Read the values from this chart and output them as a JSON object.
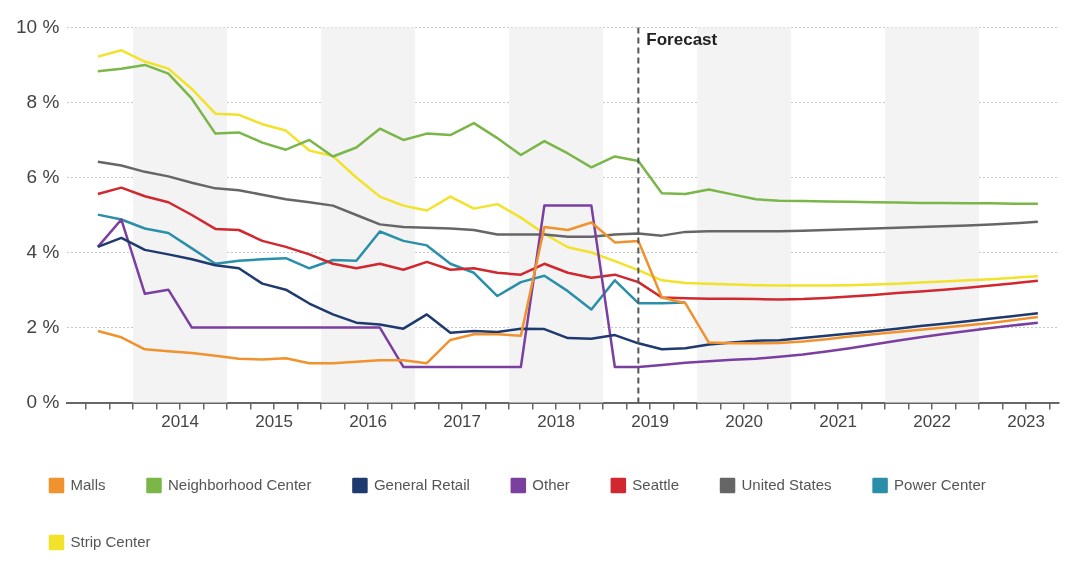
{
  "chart_data": {
    "type": "line",
    "x": [
      2013.625,
      2013.875,
      2014.125,
      2014.375,
      2014.625,
      2014.875,
      2015.125,
      2015.375,
      2015.625,
      2015.875,
      2016.125,
      2016.375,
      2016.625,
      2016.875,
      2017.125,
      2017.375,
      2017.625,
      2017.875,
      2018.125,
      2018.375,
      2018.625,
      2018.875,
      2019.125,
      2019.375,
      2019.625,
      2019.875,
      2020.125,
      2020.375,
      2020.625,
      2020.875,
      2021.125,
      2021.375,
      2021.625,
      2021.875,
      2022.125,
      2022.375,
      2022.625,
      2022.875,
      2023.125,
      2023.375,
      2023.625
    ],
    "series": [
      {
        "name": "Malls",
        "color": "#f0922e",
        "values": [
          1.91,
          1.74,
          1.42,
          1.37,
          1.32,
          1.25,
          1.17,
          1.15,
          1.18,
          1.05,
          1.05,
          1.09,
          1.13,
          1.13,
          1.05,
          1.67,
          1.82,
          1.82,
          1.78,
          4.68,
          4.6,
          4.8,
          4.27,
          4.31,
          2.8,
          2.65,
          1.6,
          1.58,
          1.58,
          1.59,
          1.63,
          1.69,
          1.76,
          1.82,
          1.88,
          1.94,
          2.0,
          2.06,
          2.12,
          2.2,
          2.28
        ]
      },
      {
        "name": "Neighborhood Center",
        "color": "#7ab648",
        "values": [
          8.83,
          8.9,
          9.0,
          8.77,
          8.1,
          7.17,
          7.2,
          6.93,
          6.74,
          7.0,
          6.56,
          6.8,
          7.3,
          7.0,
          7.17,
          7.13,
          7.45,
          7.05,
          6.6,
          6.97,
          6.64,
          6.27,
          6.56,
          6.44,
          5.58,
          5.56,
          5.68,
          5.55,
          5.42,
          5.38,
          5.37,
          5.36,
          5.35,
          5.34,
          5.33,
          5.32,
          5.32,
          5.31,
          5.31,
          5.3,
          5.3
        ]
      },
      {
        "name": "General Retail",
        "color": "#1f3a6e",
        "values": [
          4.15,
          4.39,
          4.07,
          3.95,
          3.82,
          3.66,
          3.58,
          3.17,
          3.01,
          2.64,
          2.35,
          2.13,
          2.08,
          1.97,
          2.35,
          1.86,
          1.91,
          1.88,
          1.97,
          1.96,
          1.72,
          1.7,
          1.8,
          1.58,
          1.42,
          1.45,
          1.55,
          1.6,
          1.65,
          1.66,
          1.72,
          1.78,
          1.84,
          1.9,
          1.97,
          2.04,
          2.1,
          2.17,
          2.24,
          2.31,
          2.38
        ]
      },
      {
        "name": "Other",
        "color": "#7b3fa0",
        "values": [
          4.15,
          4.88,
          2.9,
          3.01,
          2.0,
          2.0,
          2.0,
          2.0,
          2.0,
          2.0,
          2.0,
          2.0,
          2.0,
          0.95,
          0.95,
          0.95,
          0.95,
          0.95,
          0.95,
          5.25,
          5.25,
          5.25,
          0.95,
          0.95,
          1.0,
          1.06,
          1.1,
          1.14,
          1.17,
          1.22,
          1.28,
          1.36,
          1.45,
          1.55,
          1.65,
          1.74,
          1.83,
          1.91,
          1.99,
          2.06,
          2.13
        ]
      },
      {
        "name": "Seattle",
        "color": "#d0282e",
        "values": [
          5.56,
          5.73,
          5.5,
          5.34,
          5.0,
          4.63,
          4.6,
          4.31,
          4.15,
          3.95,
          3.7,
          3.58,
          3.7,
          3.54,
          3.75,
          3.54,
          3.58,
          3.46,
          3.41,
          3.7,
          3.46,
          3.33,
          3.41,
          3.21,
          2.8,
          2.78,
          2.77,
          2.77,
          2.76,
          2.75,
          2.76,
          2.79,
          2.83,
          2.87,
          2.92,
          2.96,
          3.01,
          3.06,
          3.12,
          3.18,
          3.25
        ]
      },
      {
        "name": "United States",
        "color": "#666666",
        "values": [
          6.42,
          6.32,
          6.15,
          6.03,
          5.86,
          5.71,
          5.66,
          5.54,
          5.42,
          5.34,
          5.25,
          5.0,
          4.75,
          4.68,
          4.66,
          4.64,
          4.6,
          4.48,
          4.48,
          4.48,
          4.42,
          4.42,
          4.48,
          4.51,
          4.45,
          4.55,
          4.57,
          4.57,
          4.57,
          4.57,
          4.58,
          4.6,
          4.62,
          4.64,
          4.66,
          4.68,
          4.7,
          4.72,
          4.75,
          4.78,
          4.82
        ]
      },
      {
        "name": "Power Center",
        "color": "#2a8fa8",
        "values": [
          5.01,
          4.88,
          4.64,
          4.52,
          4.11,
          3.7,
          3.78,
          3.82,
          3.85,
          3.58,
          3.8,
          3.78,
          4.56,
          4.31,
          4.19,
          3.7,
          3.46,
          2.84,
          3.21,
          3.38,
          2.97,
          2.48,
          3.26,
          2.65,
          2.65,
          2.67,
          null,
          null,
          null,
          null,
          null,
          null,
          null,
          null,
          null,
          null,
          null,
          null,
          null,
          null,
          null
        ]
      },
      {
        "name": "Strip Center",
        "color": "#f2e22a",
        "values": [
          9.22,
          9.39,
          9.09,
          8.9,
          8.36,
          7.7,
          7.67,
          7.42,
          7.25,
          6.72,
          6.57,
          6.0,
          5.49,
          5.25,
          5.12,
          5.49,
          5.17,
          5.29,
          4.93,
          4.5,
          4.14,
          4.0,
          3.77,
          3.53,
          3.26,
          3.19,
          3.17,
          3.15,
          3.13,
          3.12,
          3.12,
          3.12,
          3.13,
          3.15,
          3.17,
          3.2,
          3.23,
          3.26,
          3.29,
          3.33,
          3.37
        ]
      }
    ],
    "xlim": [
      2013.3,
      2023.85
    ],
    "xticks": [
      {
        "value": 2013.5,
        "label": null
      },
      {
        "value": 2013.75,
        "label": null
      },
      {
        "value": 2014,
        "label": null
      },
      {
        "value": 2014.25,
        "label": null
      },
      {
        "value": 2014.5,
        "label": "2014"
      },
      {
        "value": 2014.75,
        "label": null
      },
      {
        "value": 2015,
        "label": null
      },
      {
        "value": 2015.25,
        "label": null
      },
      {
        "value": 2015.5,
        "label": "2015"
      },
      {
        "value": 2015.75,
        "label": null
      },
      {
        "value": 2016,
        "label": null
      },
      {
        "value": 2016.25,
        "label": null
      },
      {
        "value": 2016.5,
        "label": "2016"
      },
      {
        "value": 2016.75,
        "label": null
      },
      {
        "value": 2017,
        "label": null
      },
      {
        "value": 2017.25,
        "label": null
      },
      {
        "value": 2017.5,
        "label": "2017"
      },
      {
        "value": 2017.75,
        "label": null
      },
      {
        "value": 2018,
        "label": null
      },
      {
        "value": 2018.25,
        "label": null
      },
      {
        "value": 2018.5,
        "label": "2018"
      },
      {
        "value": 2018.75,
        "label": null
      },
      {
        "value": 2019,
        "label": null
      },
      {
        "value": 2019.25,
        "label": null
      },
      {
        "value": 2019.5,
        "label": "2019"
      },
      {
        "value": 2019.75,
        "label": null
      },
      {
        "value": 2020,
        "label": null
      },
      {
        "value": 2020.25,
        "label": null
      },
      {
        "value": 2020.5,
        "label": "2020"
      },
      {
        "value": 2020.75,
        "label": null
      },
      {
        "value": 2021,
        "label": null
      },
      {
        "value": 2021.25,
        "label": null
      },
      {
        "value": 2021.5,
        "label": "2021"
      },
      {
        "value": 2021.75,
        "label": null
      },
      {
        "value": 2022,
        "label": null
      },
      {
        "value": 2022.25,
        "label": null
      },
      {
        "value": 2022.5,
        "label": "2022"
      },
      {
        "value": 2022.75,
        "label": null
      },
      {
        "value": 2023,
        "label": null
      },
      {
        "value": 2023.25,
        "label": null
      },
      {
        "value": 2023.5,
        "label": "2023"
      },
      {
        "value": 2023.75,
        "label": null
      }
    ],
    "ylim": [
      0,
      10
    ],
    "yticks": [
      {
        "value": 0,
        "label": "0 %"
      },
      {
        "value": 2,
        "label": "2 %"
      },
      {
        "value": 4,
        "label": "4 %"
      },
      {
        "value": 6,
        "label": "6 %"
      },
      {
        "value": 8,
        "label": "8 %"
      },
      {
        "value": 10,
        "label": "10 %"
      }
    ],
    "grid": "y",
    "legend": "bottom left",
    "ref_lines": [
      {
        "axis": "x",
        "value": 2019.375,
        "label": "Forecast",
        "color": "#555555",
        "line_style": "dashed"
      }
    ],
    "bands": [
      {
        "axis": "x",
        "from": 2014,
        "to": 2015,
        "color": "#f3f3f3"
      },
      {
        "axis": "x",
        "from": 2016,
        "to": 2017,
        "color": "#f3f3f3"
      },
      {
        "axis": "x",
        "from": 2018,
        "to": 2019,
        "color": "#f3f3f3"
      },
      {
        "axis": "x",
        "from": 2020,
        "to": 2021,
        "color": "#f3f3f3"
      },
      {
        "axis": "x",
        "from": 2022,
        "to": 2023,
        "color": "#f3f3f3"
      }
    ]
  }
}
